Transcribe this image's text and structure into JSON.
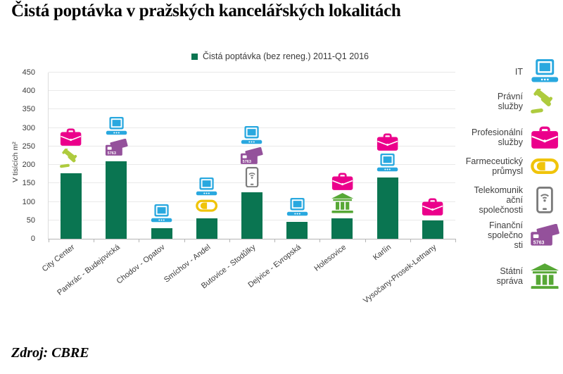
{
  "page": {
    "title": "Čistá poptávka v pražských kancelářských lokalitách",
    "source": "Zdroj: CBRE"
  },
  "colors": {
    "bar_green": "#0a7551",
    "it_blue": "#29a8df",
    "legal_green": "#aecb3e",
    "professional_pink": "#eb008b",
    "pharma_yellow": "#f0c40a",
    "telecom_gray": "#7b7b7b",
    "financial_purple": "#94519b",
    "state_green": "#57a836",
    "grid": "#e9e9e9",
    "axis": "#b5b5b5",
    "text": "#3c3c3c"
  },
  "chart_data": {
    "type": "bar",
    "legend_label": "Čistá poptávka (bez reneg.)  2011-Q1 2016",
    "ylabel": "V tisících m²",
    "ylim": [
      0,
      450
    ],
    "ytick_step": 50,
    "grid": true,
    "legend_position": "top-center",
    "categories": [
      "City Center",
      "Pankrác - Budejovická",
      "Chodov - Opatov",
      "Smíchov - Andel",
      "Butovice - Stodůlky",
      "Dejvice - Evropská",
      "Holesovice",
      "Karlín",
      "Vysočany-Prosek-Letnany"
    ],
    "values": [
      178,
      210,
      28,
      56,
      125,
      45,
      56,
      165,
      49
    ],
    "bar_color_key": "bar_green",
    "icons_above_bars": [
      [
        "professional",
        "legal"
      ],
      [
        "it",
        "financial"
      ],
      [
        "it"
      ],
      [
        "it",
        "pharma"
      ],
      [
        "it",
        "financial",
        "telecom"
      ],
      [
        "it"
      ],
      [
        "professional",
        "state"
      ],
      [
        "professional",
        "it"
      ],
      [
        "professional"
      ]
    ]
  },
  "side_legend": {
    "items": [
      {
        "sector": "it",
        "label": "IT",
        "icon": "laptop-icon",
        "color_key": "it_blue"
      },
      {
        "sector": "legal",
        "label": "Právní\nslužby",
        "icon": "gavel-icon",
        "color_key": "legal_green"
      },
      {
        "sector": "professional",
        "label": "Profesionální\nslužby",
        "icon": "briefcase-icon",
        "color_key": "professional_pink"
      },
      {
        "sector": "pharma",
        "label": "Farmeceutický\nprůmysl",
        "icon": "pill-icon",
        "color_key": "pharma_yellow"
      },
      {
        "sector": "telecom",
        "label": "Telekomunik\nační\nspolečnosti",
        "icon": "smartphone-icon",
        "color_key": "telecom_gray"
      },
      {
        "sector": "financial",
        "label": "Finanční\nspolečno\nsti",
        "icon": "credit-card-icon",
        "color_key": "financial_purple"
      },
      {
        "sector": "state",
        "label": "Státní\nspráva",
        "icon": "bank-icon",
        "color_key": "state_green"
      }
    ],
    "card_number": "5763"
  }
}
